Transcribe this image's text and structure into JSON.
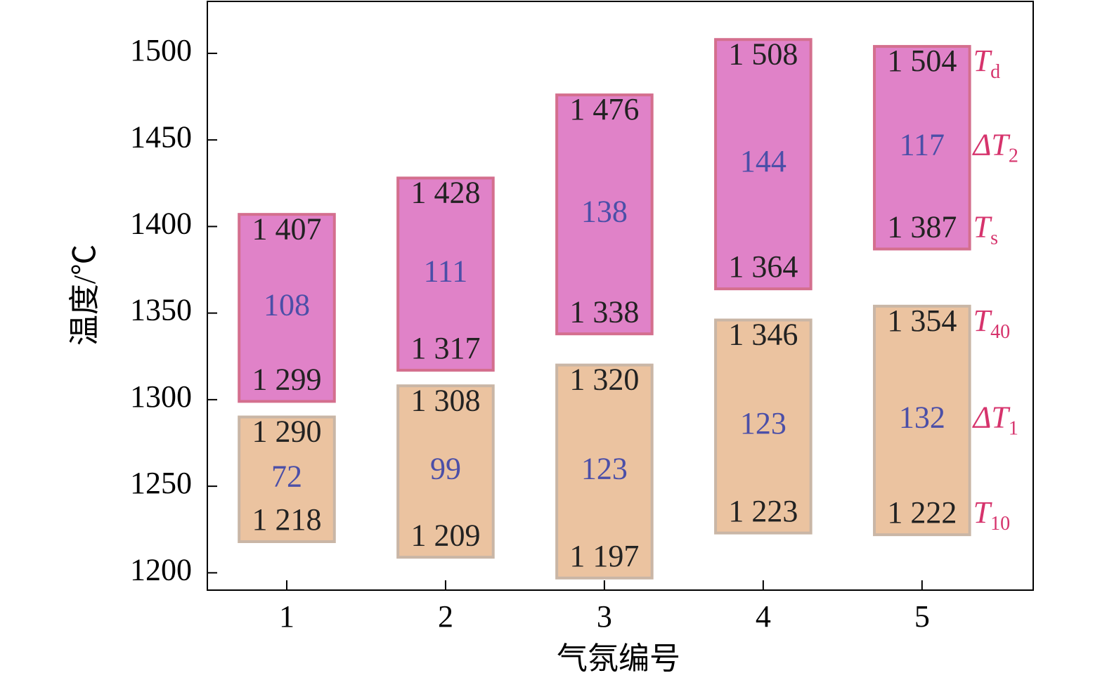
{
  "chart_data": {
    "type": "range_bar",
    "x_label": "气氛编号",
    "y_label": "温度/℃",
    "categories": [
      "1",
      "2",
      "3",
      "4",
      "5"
    ],
    "xlim": [
      0.5,
      5.7
    ],
    "xticks": [
      1,
      2,
      3,
      4,
      5
    ],
    "ylim": [
      1190,
      1530
    ],
    "yticks": [
      1200,
      1250,
      1300,
      1350,
      1400,
      1450,
      1500
    ],
    "series": [
      {
        "color": "#ebc3a0",
        "edge": "#c9b6a6",
        "low": [
          1218,
          1209,
          1197,
          1223,
          1222
        ],
        "high": [
          1290,
          1308,
          1320,
          1346,
          1354
        ],
        "delta": [
          72,
          99,
          123,
          123,
          132
        ],
        "low_labels": [
          "1 218",
          "1 209",
          "1 197",
          "1 223",
          "1 222"
        ],
        "high_labels": [
          "1 290",
          "1 308",
          "1 320",
          "1 346",
          "1 354"
        ],
        "annotations": {
          "high": {
            "text": "T",
            "sub": "40"
          },
          "delta": {
            "text": "ΔT",
            "sub": "1"
          },
          "low": {
            "text": "T",
            "sub": "10"
          }
        }
      },
      {
        "color": "#e082c8",
        "edge": "#d46f8e",
        "low": [
          1299,
          1317,
          1338,
          1364,
          1387
        ],
        "high": [
          1407,
          1428,
          1476,
          1508,
          1504
        ],
        "delta": [
          108,
          111,
          138,
          144,
          117
        ],
        "low_labels": [
          "1 299",
          "1 317",
          "1 338",
          "1 364",
          "1 387"
        ],
        "high_labels": [
          "1 407",
          "1 428",
          "1 476",
          "1 508",
          "1 504"
        ],
        "annotations": {
          "high": {
            "text": "T",
            "sub": "d"
          },
          "delta": {
            "text": "ΔT",
            "sub": "2"
          },
          "low": {
            "text": "T",
            "sub": "s"
          }
        }
      }
    ],
    "label_color": "#222222",
    "delta_color": "#4b4fa8",
    "annotation_color": "#d6336c"
  }
}
